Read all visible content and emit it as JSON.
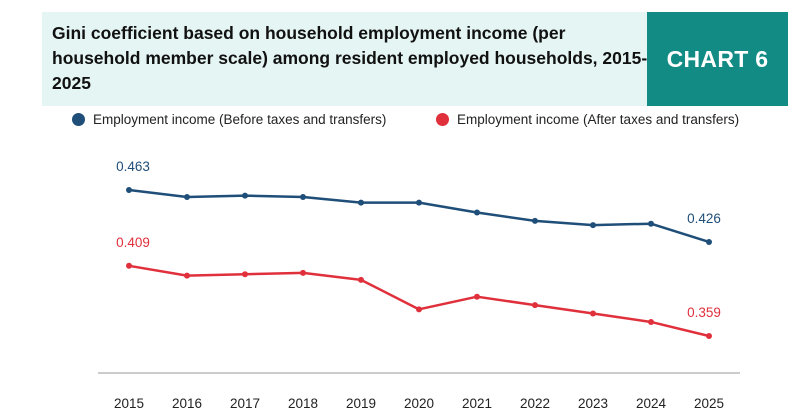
{
  "header": {
    "title": "Gini coefficient based on household employment income (per household member scale) among resident employed households, 2015-2025",
    "chart_tag": "CHART 6"
  },
  "colors": {
    "before": "#1f4e79",
    "after": "#e0303c",
    "title_bg": "#e4f5f3",
    "tag_bg": "#128b84"
  },
  "chart_data": {
    "type": "line",
    "title": "Gini coefficient based on household employment income (per household member scale) among resident employed households, 2015-2025",
    "x": [
      "2015",
      "2016",
      "2017",
      "2018",
      "2019",
      "2020",
      "2021",
      "2022",
      "2023",
      "2024",
      "2025"
    ],
    "series": [
      {
        "name": "Employment income (Before taxes and transfers)",
        "color": "#1f4e79",
        "values": [
          0.463,
          0.458,
          0.459,
          0.458,
          0.454,
          0.454,
          0.447,
          0.441,
          0.438,
          0.439,
          0.426
        ]
      },
      {
        "name": "Employment income (After taxes and transfers)",
        "color": "#e0303c",
        "values": [
          0.409,
          0.402,
          0.403,
          0.404,
          0.399,
          0.378,
          0.387,
          0.381,
          0.375,
          0.369,
          0.359
        ]
      }
    ],
    "data_labels": [
      {
        "series": 0,
        "index": 0,
        "text": "0.463"
      },
      {
        "series": 0,
        "index": 10,
        "text": "0.426"
      },
      {
        "series": 1,
        "index": 0,
        "text": "0.409"
      },
      {
        "series": 1,
        "index": 10,
        "text": "0.359"
      }
    ],
    "xlabel": "",
    "ylabel": "",
    "ylim": [
      0.354,
      0.505
    ],
    "grid": false,
    "legend": "top"
  }
}
